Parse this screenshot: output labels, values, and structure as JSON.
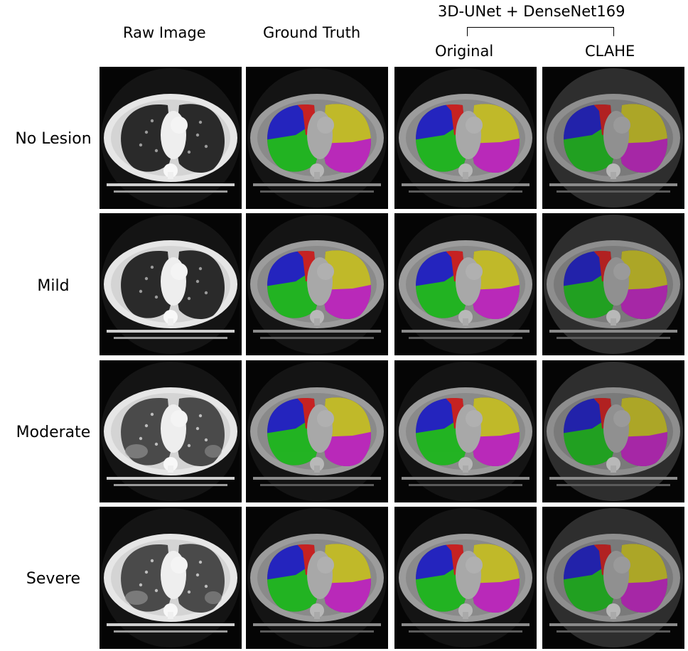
{
  "headers": {
    "raw_image": "Raw Image",
    "ground_truth": "Ground Truth",
    "model_name": "3D-UNet + DenseNet169",
    "original": "Original",
    "clahe": "CLAHE"
  },
  "rows": [
    {
      "label": "No Lesion"
    },
    {
      "label": "Mild"
    },
    {
      "label": "Moderate"
    },
    {
      "label": "Severe"
    }
  ],
  "lobe_colors": {
    "right_upper": "#1a1ad6",
    "right_middle": "#e01818",
    "right_lower": "#18c818",
    "left_upper": "#d8d020",
    "left_lower": "#d020d0"
  }
}
